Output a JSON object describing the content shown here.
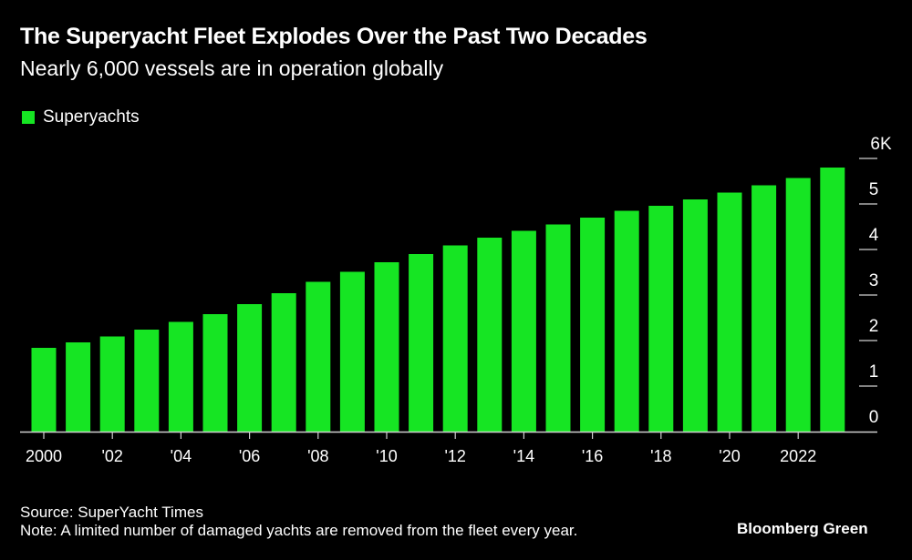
{
  "header": {
    "title": "The Superyacht Fleet Explodes Over the Past Two Decades",
    "subtitle": "Nearly 6,000 vessels are in operation globally"
  },
  "footer": {
    "source": "Source: SuperYacht Times",
    "note": "Note: A limited number of damaged yachts are removed from the fleet every year.",
    "brand": "Bloomberg Green"
  },
  "colors": {
    "bar": "#16e523",
    "background": "#000000",
    "text": "#ffffff"
  },
  "chart_data": {
    "type": "bar",
    "title": "The Superyacht Fleet Explodes Over the Past Two Decades",
    "subtitle": "Nearly 6,000 vessels are in operation globally",
    "xlabel": "",
    "ylabel": "",
    "legend": {
      "entries": [
        "Superyachts"
      ],
      "placement": "top-left"
    },
    "categories": [
      "2000",
      "2001",
      "2002",
      "2003",
      "2004",
      "2005",
      "2006",
      "2007",
      "2008",
      "2009",
      "2010",
      "2011",
      "2012",
      "2013",
      "2014",
      "2015",
      "2016",
      "2017",
      "2018",
      "2019",
      "2020",
      "2021",
      "2022",
      "2023"
    ],
    "series": [
      {
        "name": "Superyachts",
        "values": [
          1840,
          1960,
          2090,
          2240,
          2410,
          2580,
          2800,
          3040,
          3290,
          3510,
          3720,
          3900,
          4090,
          4260,
          4410,
          4550,
          4700,
          4850,
          4960,
          5100,
          5250,
          5410,
          5570,
          5800
        ]
      }
    ],
    "ylim": [
      0,
      6000
    ],
    "y_ticks": [
      {
        "value": 0,
        "label": "0"
      },
      {
        "value": 1000,
        "label": "1"
      },
      {
        "value": 2000,
        "label": "2"
      },
      {
        "value": 3000,
        "label": "3"
      },
      {
        "value": 4000,
        "label": "4"
      },
      {
        "value": 5000,
        "label": "5"
      },
      {
        "value": 6000,
        "label": "6K"
      }
    ],
    "x_ticks": [
      {
        "category": "2000",
        "label": "2000"
      },
      {
        "category": "2002",
        "label": "'02"
      },
      {
        "category": "2004",
        "label": "'04"
      },
      {
        "category": "2006",
        "label": "'06"
      },
      {
        "category": "2008",
        "label": "'08"
      },
      {
        "category": "2010",
        "label": "'10"
      },
      {
        "category": "2012",
        "label": "'12"
      },
      {
        "category": "2014",
        "label": "'14"
      },
      {
        "category": "2016",
        "label": "'16"
      },
      {
        "category": "2018",
        "label": "'18"
      },
      {
        "category": "2020",
        "label": "'20"
      },
      {
        "category": "2022",
        "label": "2022"
      }
    ],
    "y_axis_position": "right",
    "grid": false
  }
}
